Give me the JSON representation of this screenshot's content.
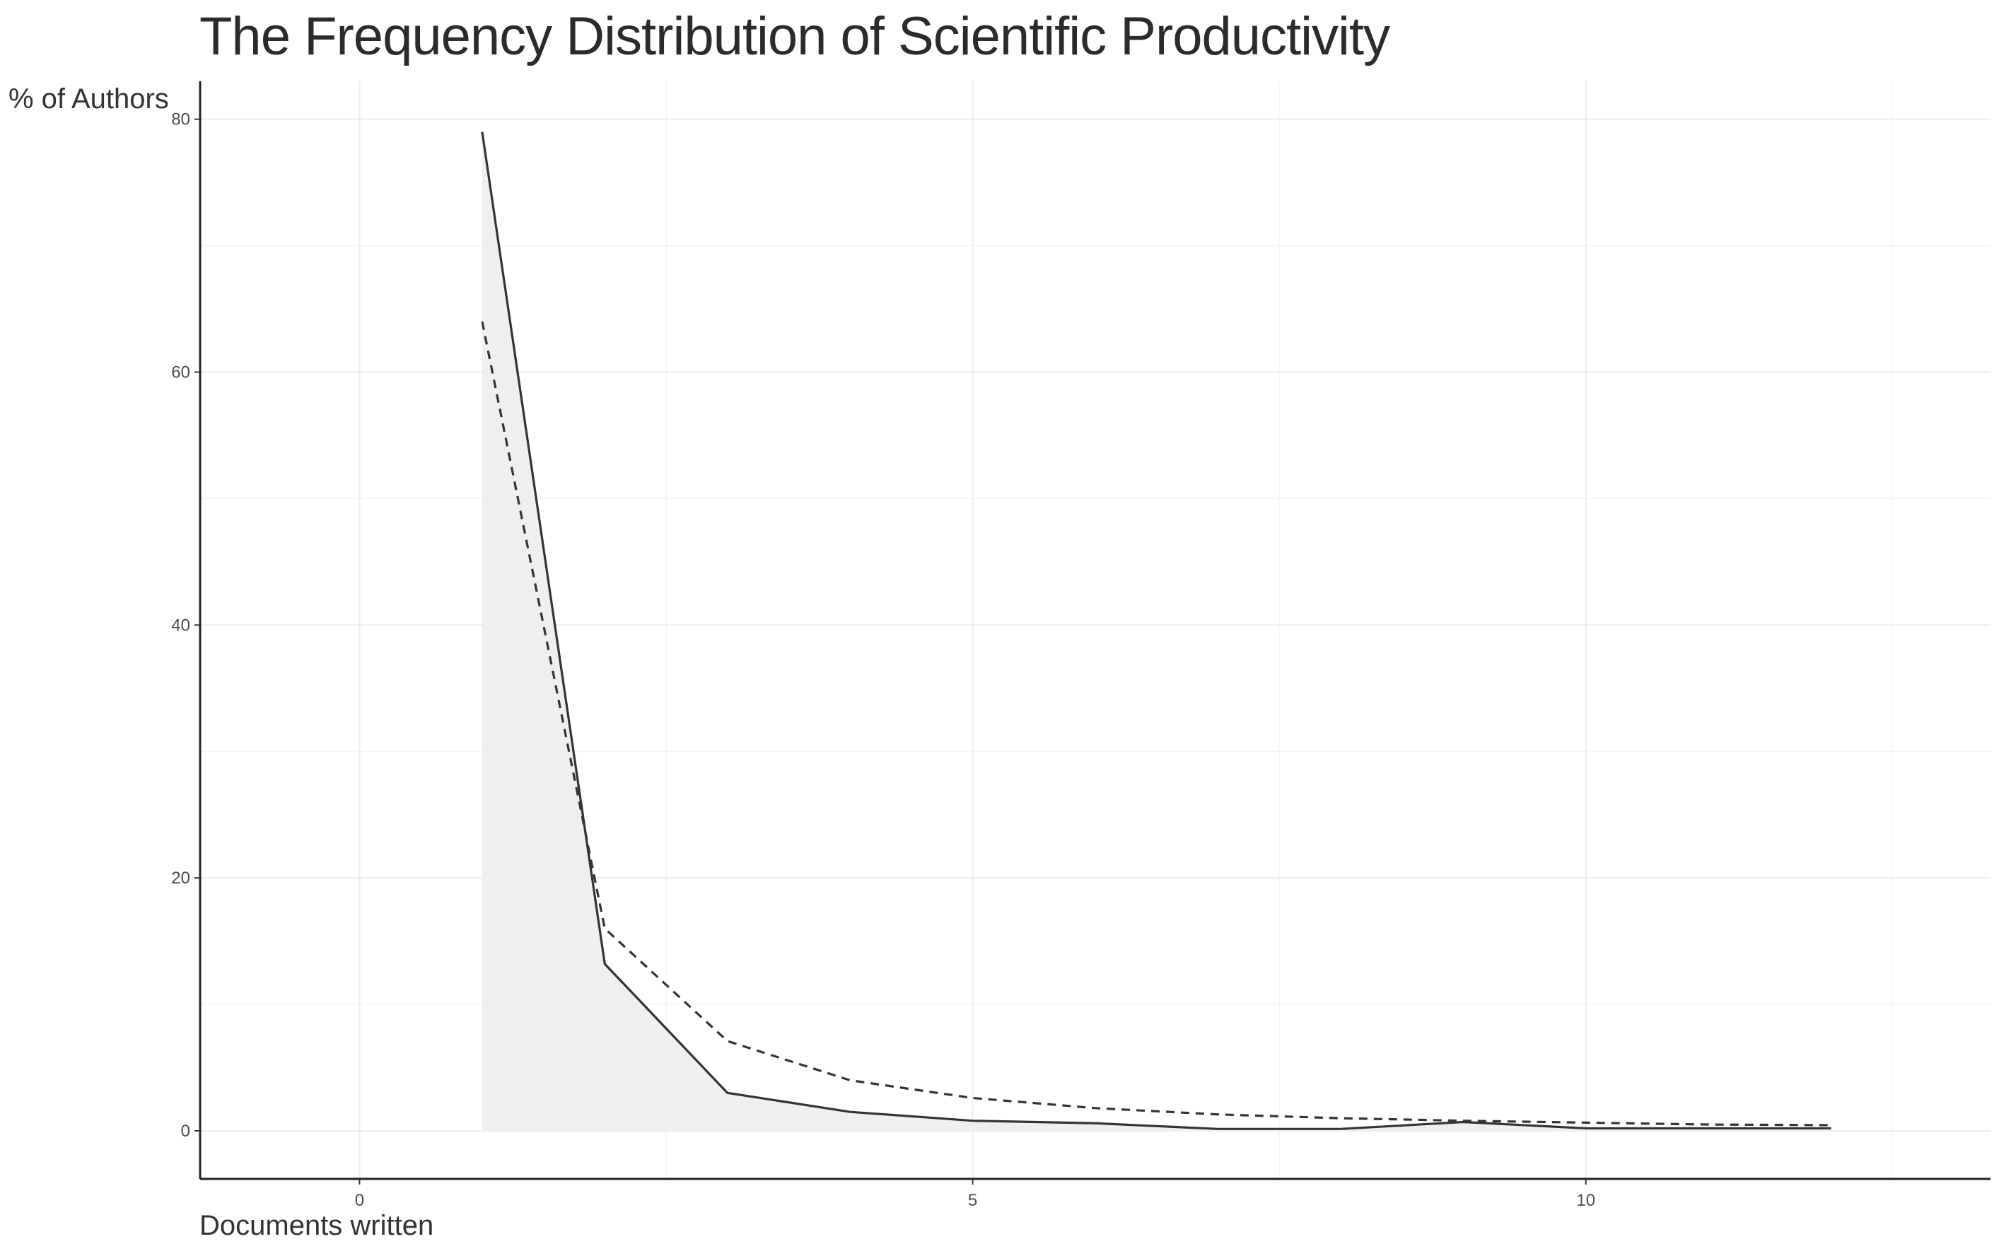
{
  "chart_data": {
    "type": "line",
    "title": "The Frequency Distribution of Scientific Productivity",
    "xlabel": "Documents written",
    "ylabel": "% of Authors",
    "xlim": [
      -1.3,
      13.3
    ],
    "ylim": [
      -3.8,
      83
    ],
    "x_ticks": [
      0,
      5,
      10
    ],
    "y_ticks": [
      0,
      20,
      40,
      60,
      80
    ],
    "grid": true,
    "legend": "none",
    "series": [
      {
        "style": "solid",
        "area_fill": true,
        "x": [
          1,
          2,
          3,
          4,
          5,
          6,
          7,
          8,
          9,
          10,
          11,
          12
        ],
        "values": [
          79.0,
          13.2,
          3.0,
          1.5,
          0.8,
          0.6,
          0.15,
          0.15,
          0.7,
          0.2,
          0.2,
          0.2
        ]
      },
      {
        "style": "dashed",
        "area_fill": false,
        "x": [
          1,
          2,
          3,
          4,
          5,
          6,
          7,
          8,
          9,
          10,
          11,
          12
        ],
        "values": [
          64.0,
          16.0,
          7.1,
          4.0,
          2.6,
          1.8,
          1.3,
          1.0,
          0.8,
          0.65,
          0.5,
          0.45
        ]
      }
    ]
  }
}
